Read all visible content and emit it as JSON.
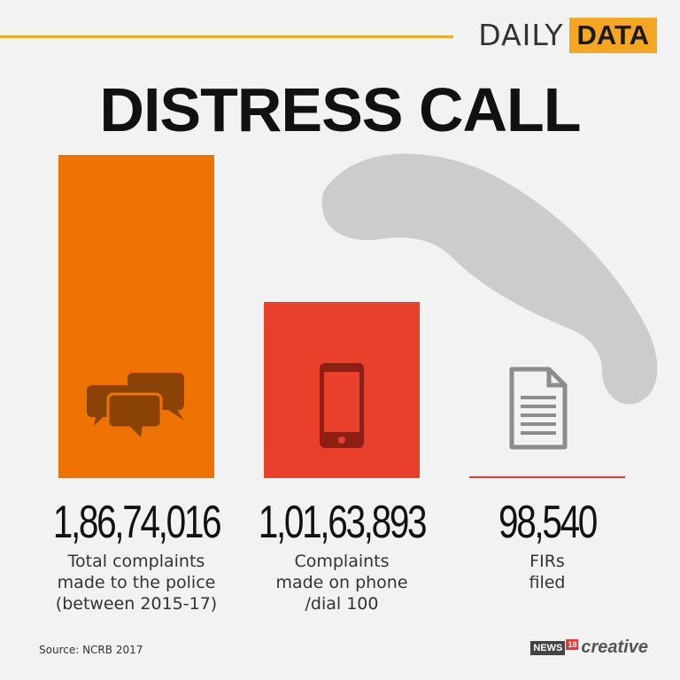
{
  "brand": {
    "daily": "DAILY",
    "data": "DATA"
  },
  "title": "DISTRESS CALL",
  "chart_data": {
    "type": "bar",
    "categories": [
      "Total complaints made to the police (between 2015-17)",
      "Complaints made on phone /dial 100",
      "FIRs filed"
    ],
    "values": [
      18674016,
      10163893,
      98540
    ],
    "value_labels": [
      "1,86,74,016",
      "1,01,63,893",
      "98,540"
    ],
    "labels_display": [
      "Total complaints\nmade to the police\n(between 2015-17)",
      "Complaints\nmade on phone\n/dial 100",
      "FIRs\nfiled"
    ],
    "colors": [
      "#ee7204",
      "#e8402a",
      "#e53935"
    ],
    "icons": [
      "speech-bubbles-icon",
      "smartphone-icon",
      "document-icon"
    ],
    "ylim": [
      0,
      18674016
    ]
  },
  "decor": {
    "handset_icon": "phone-handset-icon"
  },
  "source": "Source: NCRB 2017",
  "logo": {
    "news": "NEWS",
    "num": "18",
    "creative": "creative"
  }
}
